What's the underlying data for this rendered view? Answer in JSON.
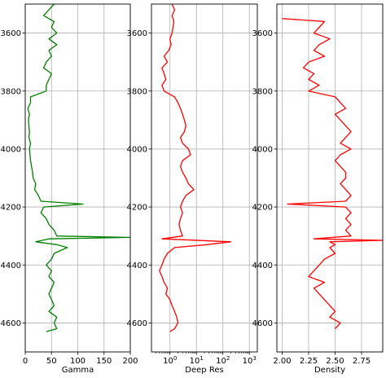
{
  "chart_data": [
    {
      "type": "line",
      "orientation": "vertical-depth",
      "xlabel": "Gamma",
      "ylabel": "",
      "xscale": "linear",
      "xlim": [
        0,
        200
      ],
      "ylim": [
        4700,
        3500
      ],
      "xticks": [
        {
          "v": 0,
          "label": "0"
        },
        {
          "v": 50,
          "label": "50"
        },
        {
          "v": 100,
          "label": "100"
        },
        {
          "v": 150,
          "label": "150"
        },
        {
          "v": 200,
          "label": "200"
        }
      ],
      "yticks": [
        {
          "v": 3600,
          "label": "3600"
        },
        {
          "v": 3800,
          "label": "3800"
        },
        {
          "v": 4000,
          "label": "4000"
        },
        {
          "v": 4200,
          "label": "4200"
        },
        {
          "v": 4400,
          "label": "4400"
        },
        {
          "v": 4600,
          "label": "4600"
        }
      ],
      "grid": true,
      "color": "#008000",
      "series": [
        {
          "depth": [
            3500,
            3520,
            3540,
            3560,
            3580,
            3600,
            3620,
            3640,
            3660,
            3680,
            3700,
            3720,
            3740,
            3760,
            3780,
            3800,
            3820,
            3840,
            3860,
            3880,
            3900,
            3920,
            3940,
            3960,
            3980,
            4000,
            4020,
            4040,
            4060,
            4080,
            4100,
            4120,
            4140,
            4160,
            4180,
            4190,
            4200,
            4220,
            4240,
            4260,
            4280,
            4300,
            4305,
            4310,
            4320,
            4330,
            4340,
            4360,
            4380,
            4400,
            4420,
            4440,
            4460,
            4480,
            4500,
            4520,
            4540,
            4560,
            4580,
            4600,
            4620,
            4630
          ],
          "values": [
            55,
            45,
            35,
            55,
            50,
            60,
            45,
            60,
            45,
            50,
            40,
            35,
            50,
            45,
            40,
            40,
            10,
            10,
            5,
            8,
            6,
            7,
            8,
            7,
            10,
            8,
            9,
            10,
            12,
            14,
            15,
            20,
            18,
            25,
            30,
            110,
            35,
            30,
            40,
            45,
            55,
            60,
            200,
            45,
            20,
            60,
            80,
            55,
            50,
            40,
            50,
            45,
            55,
            50,
            45,
            50,
            55,
            45,
            60,
            55,
            60,
            40
          ]
        }
      ]
    },
    {
      "type": "line",
      "orientation": "vertical-depth",
      "xlabel": "Deep Res",
      "ylabel": "",
      "xscale": "log",
      "xlim": [
        0.2,
        2000
      ],
      "ylim": [
        4700,
        3500
      ],
      "xticks": [
        {
          "v": 1,
          "base": "10",
          "exp": "0"
        },
        {
          "v": 10,
          "base": "10",
          "exp": "1"
        },
        {
          "v": 100,
          "base": "10",
          "exp": "2"
        },
        {
          "v": 1000,
          "base": "10",
          "exp": "3"
        }
      ],
      "yticks": [
        {
          "v": 3600,
          "label": "3600"
        },
        {
          "v": 3800,
          "label": "3800"
        },
        {
          "v": 4000,
          "label": "4000"
        },
        {
          "v": 4200,
          "label": "4200"
        },
        {
          "v": 4400,
          "label": "4400"
        },
        {
          "v": 4600,
          "label": "4600"
        }
      ],
      "grid": true,
      "color": "#ff0000",
      "series": [
        {
          "depth": [
            3500,
            3520,
            3540,
            3560,
            3580,
            3600,
            3620,
            3640,
            3660,
            3680,
            3700,
            3720,
            3740,
            3760,
            3780,
            3800,
            3820,
            3840,
            3860,
            3880,
            3900,
            3920,
            3940,
            3960,
            3980,
            4000,
            4020,
            4040,
            4060,
            4080,
            4100,
            4120,
            4140,
            4160,
            4180,
            4200,
            4220,
            4240,
            4260,
            4280,
            4300,
            4310,
            4320,
            4330,
            4340,
            4360,
            4380,
            4400,
            4420,
            4440,
            4460,
            4480,
            4500,
            4520,
            4540,
            4560,
            4580,
            4600,
            4620,
            4630
          ],
          "values": [
            1.2,
            1.5,
            1.2,
            1.4,
            1.3,
            1.2,
            1.0,
            1.1,
            0.9,
            0.6,
            0.8,
            0.5,
            0.6,
            0.7,
            0.5,
            0.6,
            1.5,
            2.0,
            2.5,
            3.0,
            3.5,
            4.0,
            3.5,
            2.5,
            3.0,
            5.0,
            6.0,
            3.0,
            2.5,
            3.0,
            4.0,
            5.0,
            8.0,
            4.0,
            3.0,
            2.5,
            3.0,
            2.5,
            2.2,
            2.5,
            3.0,
            0.5,
            200,
            25,
            1.5,
            0.8,
            0.6,
            0.5,
            0.4,
            0.5,
            0.6,
            0.8,
            0.7,
            1.0,
            1.2,
            1.5,
            1.8,
            2.0,
            1.5,
            1.0
          ]
        }
      ]
    },
    {
      "type": "line",
      "orientation": "vertical-depth",
      "xlabel": "Density",
      "ylabel": "",
      "xscale": "linear",
      "xlim": [
        1.95,
        2.95
      ],
      "ylim": [
        4700,
        3500
      ],
      "xticks": [
        {
          "v": 2.0,
          "label": "2.00"
        },
        {
          "v": 2.25,
          "label": "2.25"
        },
        {
          "v": 2.5,
          "label": "2.50"
        },
        {
          "v": 2.75,
          "label": "2.75"
        }
      ],
      "yticks": [
        {
          "v": 3600,
          "label": "3600"
        },
        {
          "v": 3800,
          "label": "3800"
        },
        {
          "v": 4000,
          "label": "4000"
        },
        {
          "v": 4200,
          "label": "4200"
        },
        {
          "v": 4400,
          "label": "4400"
        },
        {
          "v": 4600,
          "label": "4600"
        }
      ],
      "grid": true,
      "color": "#ff0000",
      "series": [
        {
          "depth": [
            3550,
            3560,
            3580,
            3600,
            3620,
            3640,
            3660,
            3680,
            3700,
            3720,
            3740,
            3760,
            3780,
            3800,
            3820,
            3840,
            3860,
            3880,
            3900,
            3920,
            3940,
            3960,
            3980,
            4000,
            4020,
            4040,
            4060,
            4080,
            4100,
            4120,
            4140,
            4160,
            4180,
            4190,
            4200,
            4220,
            4240,
            4260,
            4280,
            4300,
            4310,
            4315,
            4320,
            4330,
            4340,
            4360,
            4380,
            4400,
            4420,
            4440,
            4460,
            4480,
            4500,
            4520,
            4540,
            4560,
            4580,
            4600,
            4620
          ],
          "values": [
            2.0,
            2.4,
            2.35,
            2.3,
            2.45,
            2.35,
            2.3,
            2.4,
            2.25,
            2.2,
            2.3,
            2.25,
            2.35,
            2.25,
            2.5,
            2.55,
            2.6,
            2.5,
            2.55,
            2.6,
            2.65,
            2.6,
            2.55,
            2.65,
            2.55,
            2.5,
            2.55,
            2.6,
            2.6,
            2.55,
            2.6,
            2.65,
            2.6,
            2.05,
            2.6,
            2.65,
            2.6,
            2.65,
            2.6,
            2.65,
            2.3,
            2.95,
            2.45,
            2.5,
            2.45,
            2.5,
            2.4,
            2.35,
            2.3,
            2.25,
            2.4,
            2.3,
            2.35,
            2.4,
            2.45,
            2.5,
            2.45,
            2.55,
            2.5
          ]
        }
      ]
    }
  ]
}
